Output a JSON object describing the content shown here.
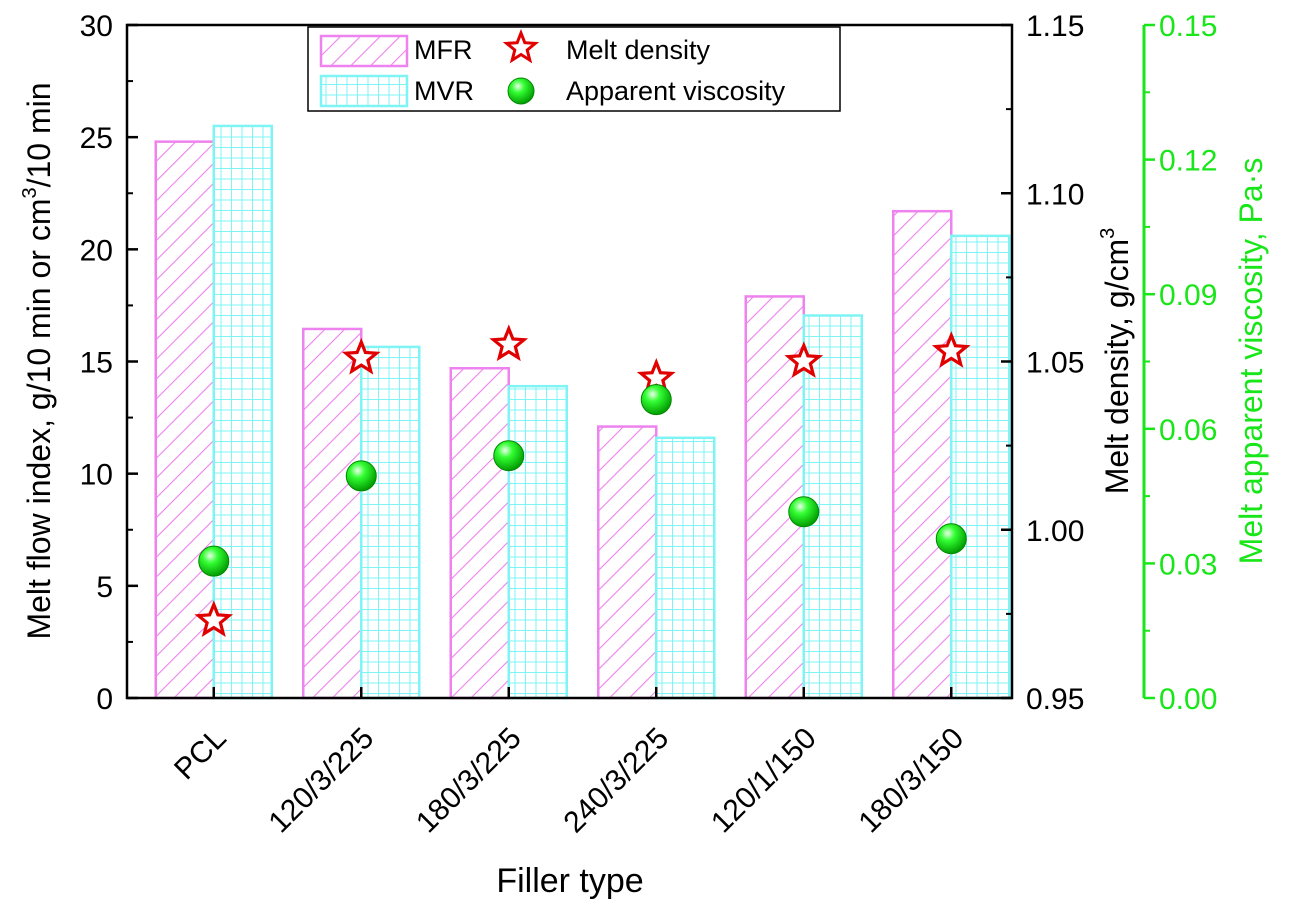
{
  "chart_data": {
    "type": "bar",
    "xlabel": "Filler type",
    "categories": [
      "PCL",
      "120/3/225",
      "180/3/225",
      "240/3/225",
      "120/1/150",
      "180/3/150"
    ],
    "y_left": {
      "label_prefix": "Melt flow index, g/10 min or cm",
      "label_sup": "3",
      "label_suffix": "/10 min",
      "range": [
        0,
        30
      ],
      "ticks": [
        0,
        5,
        10,
        15,
        20,
        25,
        30
      ]
    },
    "y_right1": {
      "label_prefix": "Melt density, g/cm",
      "label_sup": "3",
      "range": [
        0.95,
        1.15
      ],
      "ticks": [
        "0.95",
        "1.00",
        "1.05",
        "1.10",
        "1.15"
      ]
    },
    "y_right2": {
      "label": "Melt apparent viscosity,  Pa·s",
      "range": [
        0,
        0.15
      ],
      "ticks": [
        "0.00",
        "0.03",
        "0.06",
        "0.09",
        "0.12",
        "0.15"
      ]
    },
    "series": [
      {
        "name": "MFR",
        "axis": "left",
        "kind": "bar",
        "pattern": "hatch",
        "values": [
          24.8,
          16.45,
          14.7,
          12.1,
          17.9,
          21.7
        ]
      },
      {
        "name": "MVR",
        "axis": "left",
        "kind": "bar",
        "pattern": "grid",
        "values": [
          25.5,
          15.65,
          13.9,
          11.6,
          17.05,
          20.6
        ]
      },
      {
        "name": "Melt density",
        "axis": "right1",
        "kind": "star",
        "values": [
          0.973,
          1.051,
          1.055,
          1.045,
          1.05,
          1.053
        ]
      },
      {
        "name": "Apparent viscosity",
        "axis": "right2",
        "kind": "sphere",
        "values": [
          0.0305,
          0.0495,
          0.054,
          0.0665,
          0.0415,
          0.0355
        ]
      }
    ],
    "legend_position": "top-center",
    "colors": {
      "mfr": "#ee82ee",
      "mvr": "#7ff4f4",
      "star": "#e00000",
      "viscosity": "#00ee00",
      "right_axis2": "#19e619",
      "axis": "#000000"
    }
  }
}
